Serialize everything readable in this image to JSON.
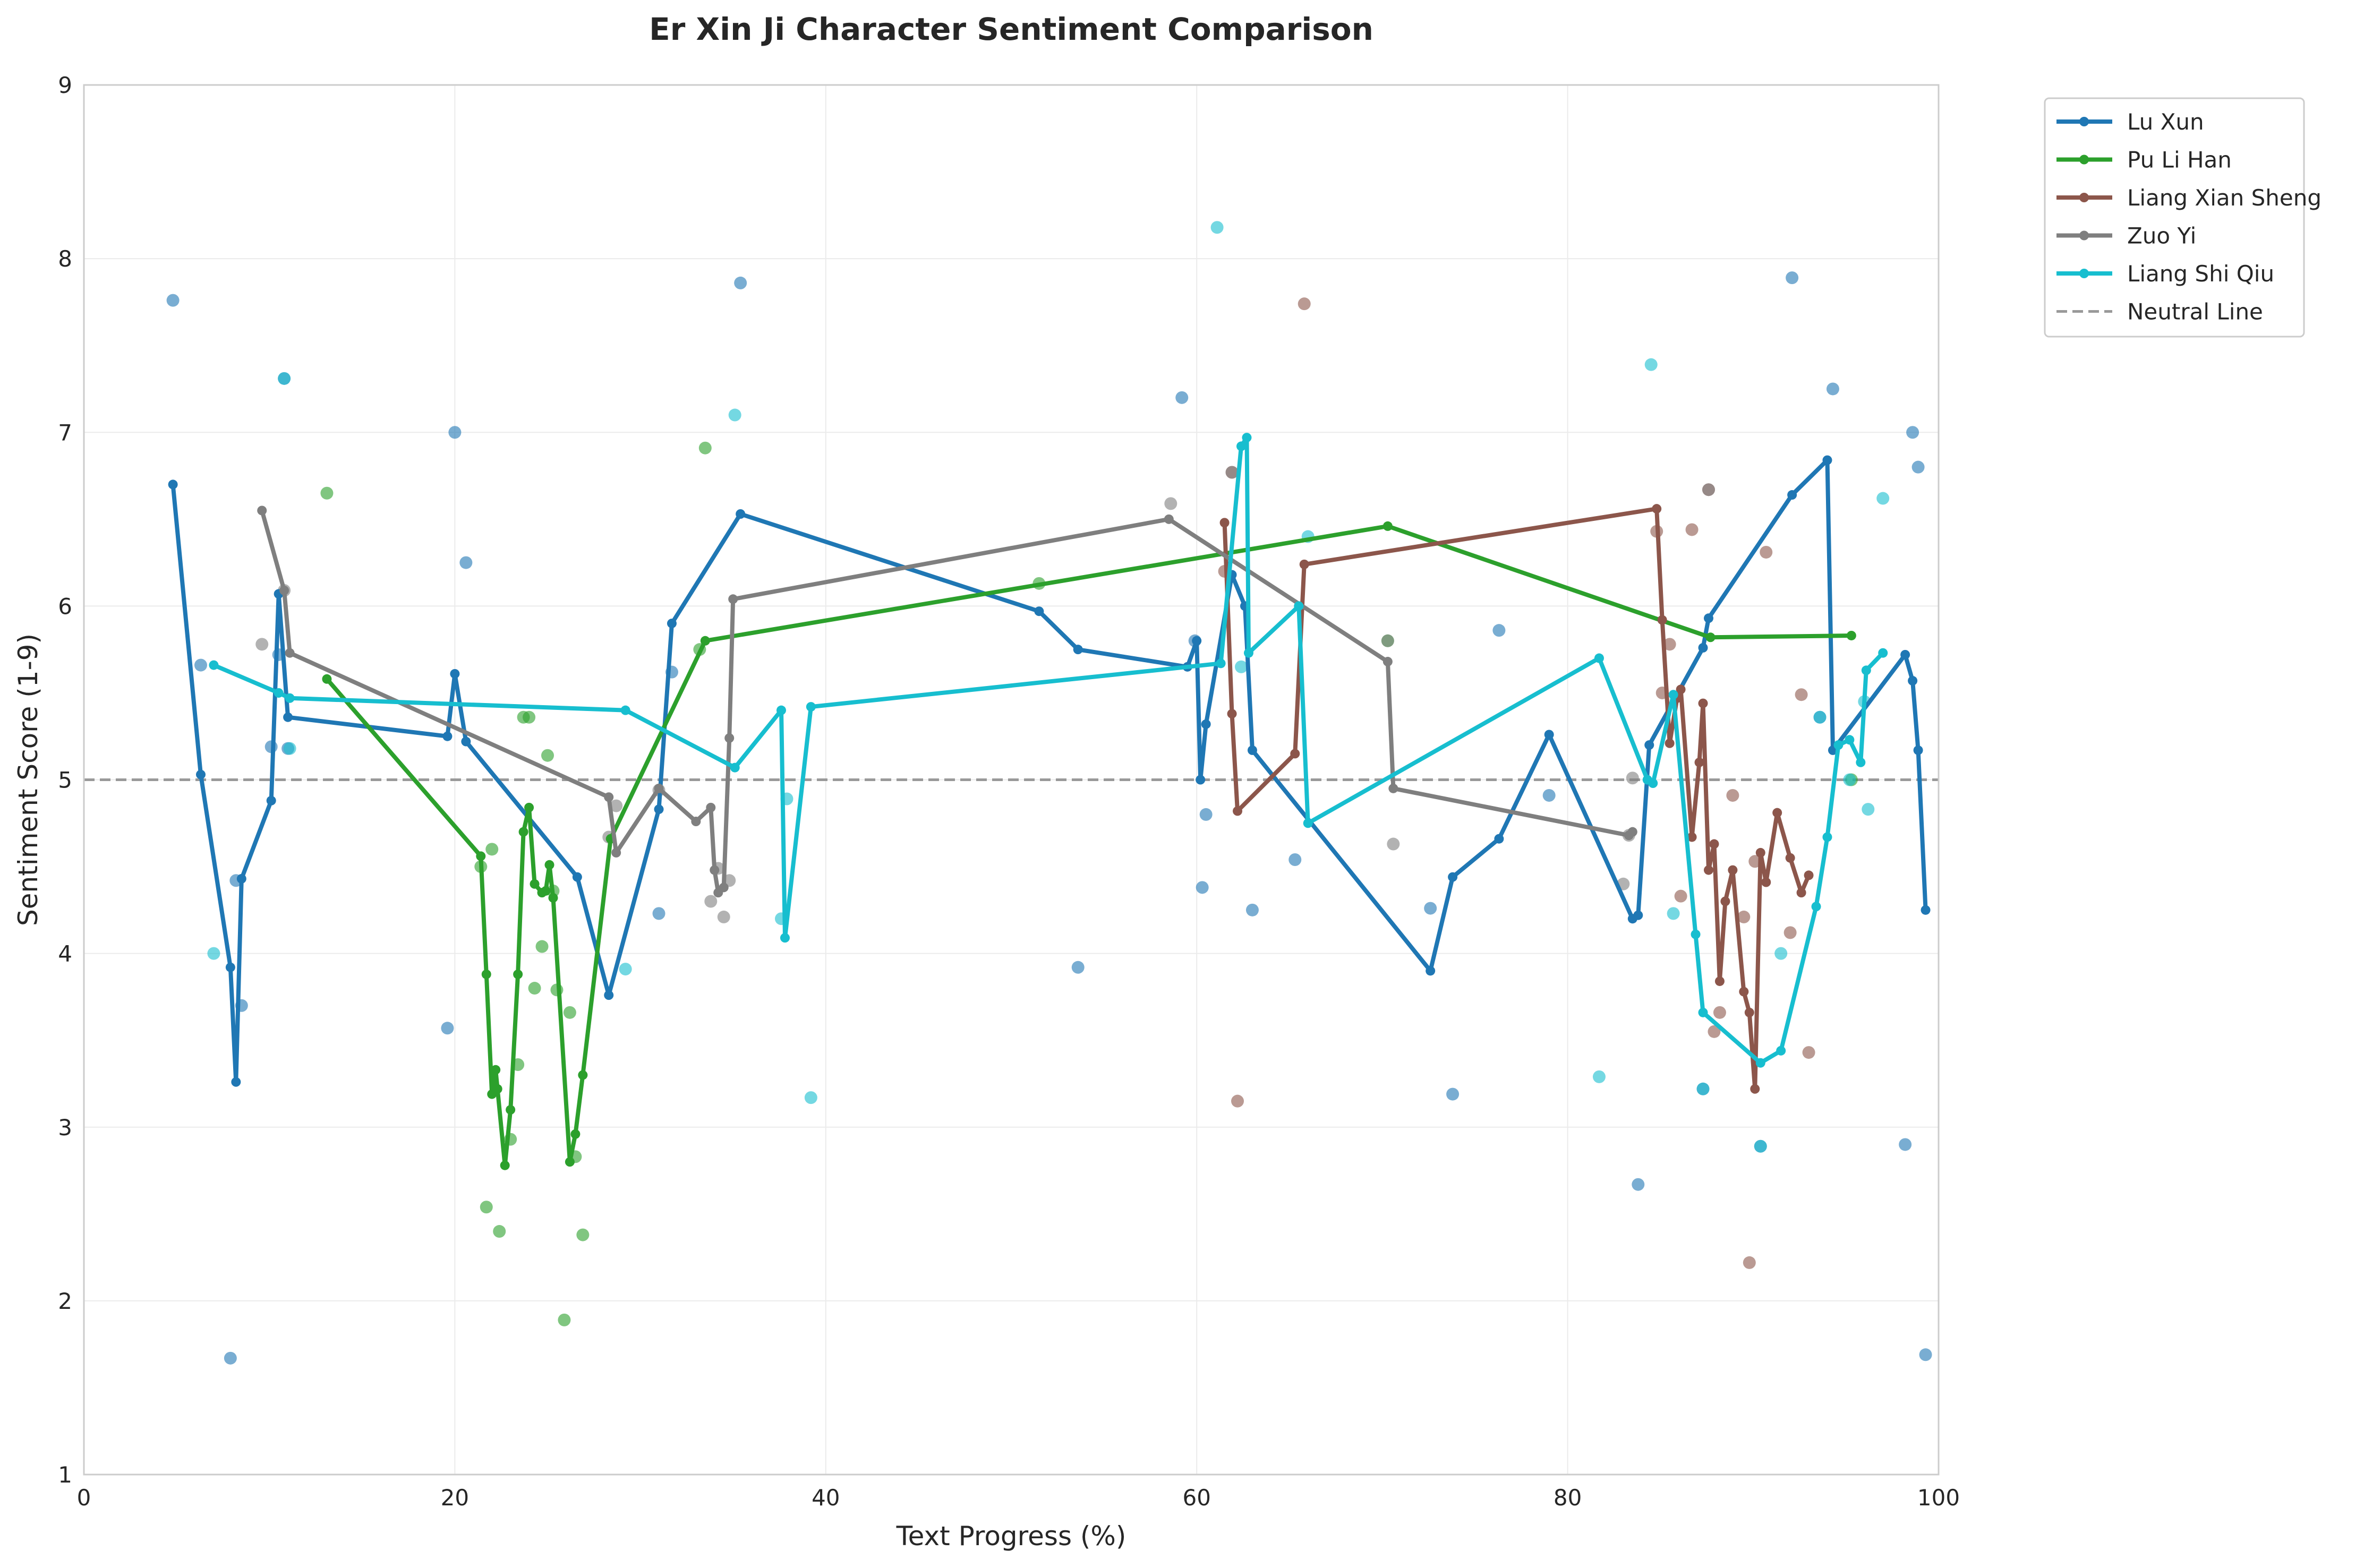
{
  "chart_data": {
    "type": "line",
    "title": "Er Xin Ji Character Sentiment Comparison",
    "xlabel": "Text Progress (%)",
    "ylabel": "Sentiment Score (1-9)",
    "xlim": [
      0,
      100
    ],
    "ylim": [
      1,
      9
    ],
    "xticks": [
      "0",
      "20",
      "40",
      "60",
      "80",
      "100"
    ],
    "yticks": [
      "1",
      "2",
      "3",
      "4",
      "5",
      "6",
      "7",
      "8",
      "9"
    ],
    "grid": true,
    "legend_placement": "outside-top-right",
    "neutral_line": {
      "name": "Neutral Line",
      "y": 5,
      "color": "#999999"
    },
    "series": [
      {
        "name": "Lu Xun",
        "color": "#1f77b4",
        "line": [
          [
            4.8,
            6.7
          ],
          [
            6.3,
            5.03
          ],
          [
            7.9,
            3.92
          ],
          [
            8.2,
            3.26
          ],
          [
            8.5,
            4.43
          ],
          [
            10.1,
            4.88
          ],
          [
            10.5,
            6.07
          ],
          [
            11.0,
            5.36
          ],
          [
            19.6,
            5.25
          ],
          [
            20.0,
            5.61
          ],
          [
            20.6,
            5.22
          ],
          [
            26.6,
            4.44
          ],
          [
            28.3,
            3.76
          ],
          [
            31.0,
            4.83
          ],
          [
            31.7,
            5.9
          ],
          [
            35.4,
            6.53
          ],
          [
            51.5,
            5.97
          ],
          [
            53.6,
            5.75
          ],
          [
            59.5,
            5.65
          ],
          [
            60.0,
            5.8
          ],
          [
            60.2,
            5.0
          ],
          [
            60.5,
            5.32
          ],
          [
            61.9,
            6.18
          ],
          [
            62.6,
            6.0
          ],
          [
            63.0,
            5.17
          ],
          [
            72.6,
            3.9
          ],
          [
            73.8,
            4.44
          ],
          [
            76.3,
            4.66
          ],
          [
            79.0,
            5.26
          ],
          [
            83.5,
            4.2
          ],
          [
            83.8,
            4.22
          ],
          [
            84.4,
            5.2
          ],
          [
            87.3,
            5.76
          ],
          [
            87.6,
            5.93
          ],
          [
            92.1,
            6.64
          ],
          [
            94.0,
            6.84
          ],
          [
            94.3,
            5.17
          ],
          [
            98.2,
            5.72
          ],
          [
            98.6,
            5.57
          ],
          [
            98.9,
            5.17
          ],
          [
            99.3,
            4.25
          ]
        ],
        "scatter": [
          [
            4.8,
            7.76
          ],
          [
            6.3,
            5.66
          ],
          [
            7.9,
            1.67
          ],
          [
            8.2,
            4.42
          ],
          [
            8.5,
            3.7
          ],
          [
            10.1,
            5.19
          ],
          [
            10.5,
            5.72
          ],
          [
            10.8,
            7.31
          ],
          [
            11.0,
            5.18
          ],
          [
            19.6,
            3.57
          ],
          [
            20.0,
            7.0
          ],
          [
            20.6,
            6.25
          ],
          [
            31.0,
            4.23
          ],
          [
            31.7,
            5.62
          ],
          [
            35.4,
            7.86
          ],
          [
            53.6,
            3.92
          ],
          [
            59.2,
            7.2
          ],
          [
            59.9,
            5.8
          ],
          [
            60.3,
            4.38
          ],
          [
            60.5,
            4.8
          ],
          [
            63.0,
            4.25
          ],
          [
            65.3,
            4.54
          ],
          [
            72.6,
            4.26
          ],
          [
            73.8,
            3.19
          ],
          [
            76.3,
            5.86
          ],
          [
            79.0,
            4.91
          ],
          [
            83.8,
            2.67
          ],
          [
            87.3,
            3.22
          ],
          [
            90.4,
            2.89
          ],
          [
            92.1,
            7.89
          ],
          [
            93.6,
            5.36
          ],
          [
            94.3,
            7.25
          ],
          [
            98.2,
            2.9
          ],
          [
            98.6,
            7.0
          ],
          [
            98.9,
            6.8
          ],
          [
            99.3,
            1.69
          ]
        ]
      },
      {
        "name": "Pu Li Han",
        "color": "#2ca02c",
        "line": [
          [
            13.1,
            5.58
          ],
          [
            21.4,
            4.56
          ],
          [
            21.7,
            3.88
          ],
          [
            22.0,
            3.19
          ],
          [
            22.2,
            3.33
          ],
          [
            22.3,
            3.22
          ],
          [
            22.7,
            2.78
          ],
          [
            23.0,
            3.1
          ],
          [
            23.4,
            3.88
          ],
          [
            23.7,
            4.7
          ],
          [
            24.0,
            4.84
          ],
          [
            24.3,
            4.4
          ],
          [
            24.7,
            4.35
          ],
          [
            24.9,
            4.36
          ],
          [
            25.1,
            4.51
          ],
          [
            25.3,
            4.32
          ],
          [
            26.2,
            2.8
          ],
          [
            26.5,
            2.96
          ],
          [
            26.9,
            3.3
          ],
          [
            28.4,
            4.66
          ],
          [
            33.5,
            5.8
          ],
          [
            70.3,
            6.46
          ],
          [
            87.7,
            5.82
          ],
          [
            95.3,
            5.83
          ]
        ],
        "scatter": [
          [
            13.1,
            6.65
          ],
          [
            21.4,
            4.5
          ],
          [
            21.7,
            2.54
          ],
          [
            22.0,
            4.6
          ],
          [
            22.4,
            2.4
          ],
          [
            23.0,
            2.93
          ],
          [
            23.4,
            3.36
          ],
          [
            23.7,
            5.36
          ],
          [
            24.0,
            5.36
          ],
          [
            24.3,
            3.8
          ],
          [
            24.7,
            4.04
          ],
          [
            25.0,
            5.14
          ],
          [
            25.3,
            4.36
          ],
          [
            25.5,
            3.79
          ],
          [
            25.9,
            1.89
          ],
          [
            26.2,
            3.66
          ],
          [
            26.5,
            2.83
          ],
          [
            26.9,
            2.38
          ],
          [
            33.2,
            5.75
          ],
          [
            33.5,
            6.91
          ],
          [
            51.5,
            6.13
          ],
          [
            70.3,
            5.8
          ],
          [
            95.3,
            5.0
          ]
        ]
      },
      {
        "name": "Liang Xian Sheng",
        "color": "#8c564b",
        "line": [
          [
            61.5,
            6.48
          ],
          [
            61.9,
            5.38
          ],
          [
            62.2,
            4.82
          ],
          [
            65.3,
            5.15
          ],
          [
            65.8,
            6.24
          ],
          [
            84.8,
            6.56
          ],
          [
            85.1,
            5.92
          ],
          [
            85.5,
            5.21
          ],
          [
            85.9,
            5.47
          ],
          [
            86.1,
            5.52
          ],
          [
            86.7,
            4.67
          ],
          [
            87.1,
            5.1
          ],
          [
            87.3,
            5.44
          ],
          [
            87.6,
            4.48
          ],
          [
            87.9,
            4.63
          ],
          [
            88.2,
            3.84
          ],
          [
            88.5,
            4.3
          ],
          [
            88.9,
            4.48
          ],
          [
            89.5,
            3.78
          ],
          [
            89.8,
            3.66
          ],
          [
            90.1,
            3.22
          ],
          [
            90.4,
            4.58
          ],
          [
            90.7,
            4.41
          ],
          [
            91.3,
            4.81
          ],
          [
            92.0,
            4.55
          ],
          [
            92.6,
            4.35
          ],
          [
            93.0,
            4.45
          ]
        ],
        "scatter": [
          [
            61.5,
            6.2
          ],
          [
            61.9,
            6.77
          ],
          [
            62.2,
            3.15
          ],
          [
            65.8,
            7.74
          ],
          [
            84.8,
            6.43
          ],
          [
            85.1,
            5.5
          ],
          [
            85.5,
            5.78
          ],
          [
            86.1,
            4.33
          ],
          [
            86.7,
            6.44
          ],
          [
            87.6,
            6.67
          ],
          [
            87.9,
            3.55
          ],
          [
            88.2,
            3.66
          ],
          [
            88.9,
            4.91
          ],
          [
            89.5,
            4.21
          ],
          [
            89.8,
            2.22
          ],
          [
            90.1,
            4.53
          ],
          [
            90.7,
            6.31
          ],
          [
            92.0,
            4.12
          ],
          [
            92.6,
            5.49
          ],
          [
            93.0,
            3.43
          ]
        ]
      },
      {
        "name": "Zuo Yi",
        "color": "#7f7f7f",
        "line": [
          [
            9.6,
            6.55
          ],
          [
            10.8,
            6.09
          ],
          [
            11.1,
            5.73
          ],
          [
            28.3,
            4.9
          ],
          [
            28.7,
            4.58
          ],
          [
            31.0,
            4.95
          ],
          [
            33.0,
            4.76
          ],
          [
            33.8,
            4.84
          ],
          [
            34.0,
            4.48
          ],
          [
            34.2,
            4.35
          ],
          [
            34.5,
            4.38
          ],
          [
            34.8,
            5.24
          ],
          [
            35.0,
            6.04
          ],
          [
            58.5,
            6.5
          ],
          [
            70.3,
            5.68
          ],
          [
            70.6,
            4.95
          ],
          [
            83.3,
            4.68
          ],
          [
            83.5,
            4.7
          ]
        ],
        "scatter": [
          [
            9.6,
            5.78
          ],
          [
            10.8,
            6.09
          ],
          [
            28.3,
            4.67
          ],
          [
            28.7,
            4.85
          ],
          [
            31.0,
            4.94
          ],
          [
            33.8,
            4.3
          ],
          [
            34.2,
            4.49
          ],
          [
            34.5,
            4.21
          ],
          [
            34.8,
            4.42
          ],
          [
            58.6,
            6.59
          ],
          [
            61.9,
            6.77
          ],
          [
            70.6,
            4.63
          ],
          [
            70.3,
            5.8
          ],
          [
            83.0,
            4.4
          ],
          [
            83.3,
            4.68
          ],
          [
            83.5,
            5.01
          ],
          [
            87.6,
            6.67
          ]
        ]
      },
      {
        "name": "Liang Shi Qiu",
        "color": "#17becf",
        "line": [
          [
            7.0,
            5.66
          ],
          [
            10.5,
            5.5
          ],
          [
            11.1,
            5.47
          ],
          [
            29.2,
            5.4
          ],
          [
            35.1,
            5.07
          ],
          [
            37.6,
            5.4
          ],
          [
            37.8,
            4.09
          ],
          [
            39.2,
            5.42
          ],
          [
            61.3,
            5.67
          ],
          [
            62.4,
            6.92
          ],
          [
            62.7,
            6.97
          ],
          [
            62.8,
            5.73
          ],
          [
            65.5,
            6.0
          ],
          [
            66.0,
            4.75
          ],
          [
            81.7,
            5.7
          ],
          [
            84.3,
            5.0
          ],
          [
            84.6,
            4.98
          ],
          [
            85.7,
            5.49
          ],
          [
            86.9,
            4.11
          ],
          [
            87.3,
            3.66
          ],
          [
            90.4,
            3.37
          ],
          [
            91.5,
            3.44
          ],
          [
            93.4,
            4.27
          ],
          [
            94.0,
            4.67
          ],
          [
            94.6,
            5.2
          ],
          [
            95.2,
            5.23
          ],
          [
            95.8,
            5.1
          ],
          [
            96.1,
            5.63
          ],
          [
            97.0,
            5.73
          ]
        ],
        "scatter": [
          [
            7.0,
            4.0
          ],
          [
            10.8,
            7.31
          ],
          [
            11.1,
            5.18
          ],
          [
            29.2,
            3.91
          ],
          [
            35.1,
            7.1
          ],
          [
            37.6,
            4.2
          ],
          [
            37.9,
            4.89
          ],
          [
            39.2,
            3.17
          ],
          [
            61.1,
            8.18
          ],
          [
            62.4,
            5.65
          ],
          [
            66.0,
            6.4
          ],
          [
            81.7,
            3.29
          ],
          [
            84.5,
            7.39
          ],
          [
            85.7,
            4.23
          ],
          [
            87.3,
            3.22
          ],
          [
            90.4,
            2.89
          ],
          [
            91.5,
            4.0
          ],
          [
            93.6,
            5.36
          ],
          [
            95.2,
            5.0
          ],
          [
            96.0,
            5.45
          ],
          [
            96.2,
            4.83
          ],
          [
            97.0,
            6.62
          ]
        ]
      }
    ]
  }
}
